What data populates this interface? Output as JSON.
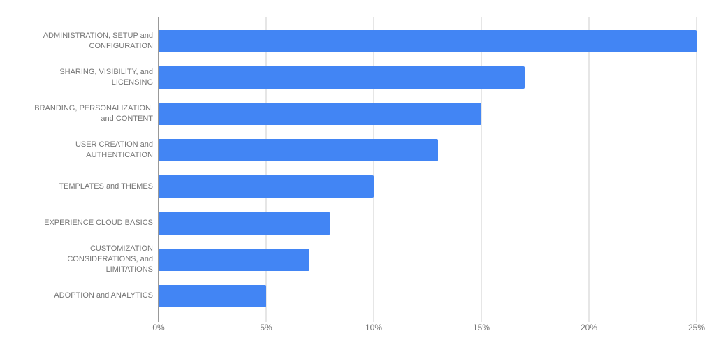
{
  "chart_data": {
    "type": "bar",
    "orientation": "horizontal",
    "title": "",
    "xlabel": "",
    "ylabel": "",
    "categories": [
      "ADMINISTRATION, SETUP and CONFIGURATION",
      "SHARING, VISIBILITY, and LICENSING",
      "BRANDING, PERSONALIZATION, and CONTENT",
      "USER CREATION and AUTHENTICATION",
      "TEMPLATES and THEMES",
      "EXPERIENCE CLOUD BASICS",
      "CUSTOMIZATION CONSIDERATIONS, and LIMITATIONS",
      "ADOPTION and ANALYTICS"
    ],
    "category_label_lines": [
      [
        "ADMINISTRATION, SETUP and",
        "CONFIGURATION"
      ],
      [
        "SHARING, VISIBILITY, and",
        "LICENSING"
      ],
      [
        "BRANDING, PERSONALIZATION,",
        "and CONTENT"
      ],
      [
        "USER CREATION and",
        "AUTHENTICATION"
      ],
      [
        "TEMPLATES and THEMES"
      ],
      [
        "EXPERIENCE CLOUD BASICS"
      ],
      [
        "CUSTOMIZATION",
        "CONSIDERATIONS, and",
        "LIMITATIONS"
      ],
      [
        "ADOPTION and ANALYTICS"
      ]
    ],
    "values": [
      25,
      17,
      15,
      13,
      10,
      8,
      7,
      5
    ],
    "value_unit": "%",
    "xlim": [
      0,
      25
    ],
    "x_ticks": [
      "0%",
      "5%",
      "10%",
      "15%",
      "20%",
      "25%"
    ],
    "x_tick_values": [
      0,
      5,
      10,
      15,
      20,
      25
    ],
    "grid": "vertical-on",
    "legend": "none",
    "colors": {
      "bar": "#4285f4",
      "gridline": "#cccccc",
      "axis_line": "#333333",
      "label_text": "#757575",
      "background": "#ffffff"
    }
  }
}
